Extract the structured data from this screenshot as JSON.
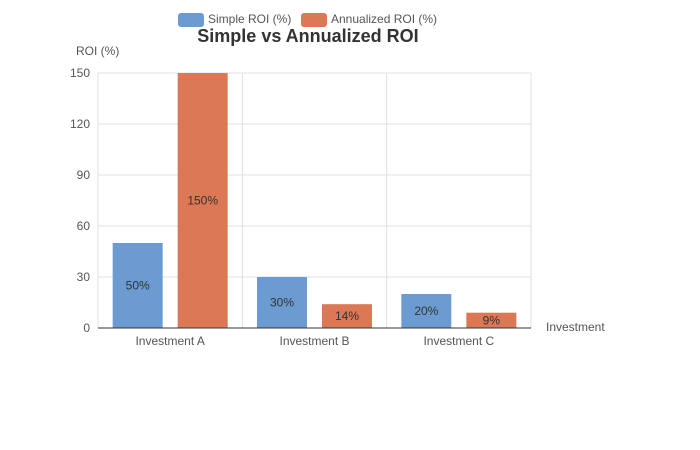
{
  "chart_data": {
    "type": "bar",
    "title": "Simple vs Annualized ROI",
    "xlabel": "Investment",
    "ylabel": "ROI (%)",
    "categories": [
      "Investment A",
      "Investment B",
      "Investment C"
    ],
    "series": [
      {
        "name": "Simple ROI (%)",
        "values": [
          50,
          30,
          20
        ],
        "labels": [
          "50%",
          "30%",
          "20%"
        ],
        "color": "#6b9bd1"
      },
      {
        "name": "Annualized ROI (%)",
        "values": [
          150,
          14,
          9
        ],
        "labels": [
          "150%",
          "14%",
          "9%"
        ],
        "color": "#dc7855"
      }
    ],
    "ylim": [
      0,
      150
    ],
    "yticks": [
      0,
      30,
      60,
      90,
      120,
      150
    ],
    "grid": true,
    "legend": "top-center"
  }
}
